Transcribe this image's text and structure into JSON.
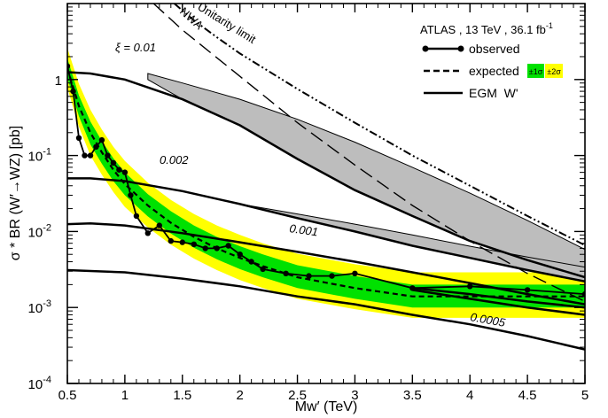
{
  "chart_data": {
    "type": "line",
    "xlabel": "Mw′ (TeV)",
    "ylabel": "σ * BR (W′→WZ) [pb]",
    "xlim": [
      0.5,
      5
    ],
    "ylim": [
      0.0001,
      10
    ],
    "yscale": "log",
    "grid": false,
    "x_ticks": [
      "0.5",
      "1",
      "1.5",
      "2",
      "2.5",
      "3",
      "3.5",
      "4",
      "4.5",
      "5"
    ],
    "y_ticks": [
      {
        "base": "10",
        "exp": "-4"
      },
      {
        "base": "10",
        "exp": "-3"
      },
      {
        "base": "10",
        "exp": "-2"
      },
      {
        "base": "10",
        "exp": "-1"
      },
      {
        "base": "1",
        "exp": ""
      }
    ],
    "legend": {
      "position": "top-right",
      "header": "ATLAS , 13 TeV , 36.1 fb",
      "header_sup": "-1",
      "entries": [
        {
          "label": "observed",
          "style": "solid-with-markers"
        },
        {
          "label": "expected",
          "style": "dashed"
        },
        {
          "label": "EGM  W'",
          "style": "solid"
        }
      ],
      "band1_label": "±1σ",
      "band2_label": "±2σ"
    },
    "observed": {
      "x": [
        0.5,
        0.55,
        0.6,
        0.65,
        0.7,
        0.75,
        0.8,
        0.85,
        0.9,
        0.95,
        1.0,
        1.05,
        1.1,
        1.2,
        1.3,
        1.4,
        1.5,
        1.6,
        1.7,
        1.8,
        1.9,
        2.0,
        2.1,
        2.2,
        2.4,
        2.6,
        2.8,
        3.0,
        3.5,
        4.0,
        4.5,
        5.0
      ],
      "y": [
        1.5,
        0.7,
        0.17,
        0.1,
        0.1,
        0.13,
        0.16,
        0.1,
        0.08,
        0.065,
        0.06,
        0.03,
        0.016,
        0.0095,
        0.012,
        0.0075,
        0.0072,
        0.0068,
        0.006,
        0.006,
        0.0065,
        0.005,
        0.004,
        0.0032,
        0.0028,
        0.0026,
        0.0026,
        0.0028,
        0.0018,
        0.0019,
        0.0017,
        0.0015
      ]
    },
    "expected": {
      "x": [
        0.5,
        0.6,
        0.7,
        0.8,
        0.9,
        1.0,
        1.2,
        1.4,
        1.6,
        1.8,
        2.0,
        2.2,
        2.5,
        3.0,
        3.5,
        4.0,
        4.5,
        5.0
      ],
      "y": [
        1.4,
        0.45,
        0.2,
        0.11,
        0.065,
        0.042,
        0.022,
        0.013,
        0.0085,
        0.006,
        0.0045,
        0.0035,
        0.0025,
        0.0018,
        0.0014,
        0.0014,
        0.0014,
        0.0014
      ]
    },
    "bands": {
      "x": [
        0.5,
        0.6,
        0.7,
        0.8,
        0.9,
        1.0,
        1.2,
        1.4,
        1.6,
        1.8,
        2.0,
        2.2,
        2.5,
        3.0,
        3.5,
        4.0,
        4.5,
        5.0
      ],
      "sigma1_lo": [
        1.05,
        0.33,
        0.14,
        0.078,
        0.046,
        0.03,
        0.0158,
        0.0094,
        0.0061,
        0.0043,
        0.0032,
        0.0025,
        0.0018,
        0.0013,
        0.001,
        0.001,
        0.001,
        0.001
      ],
      "sigma1_hi": [
        1.9,
        0.62,
        0.28,
        0.155,
        0.092,
        0.06,
        0.031,
        0.0185,
        0.012,
        0.0085,
        0.0064,
        0.005,
        0.0036,
        0.0026,
        0.002,
        0.002,
        0.002,
        0.002
      ],
      "sigma2_lo": [
        0.78,
        0.24,
        0.1,
        0.056,
        0.033,
        0.021,
        0.0113,
        0.0067,
        0.0044,
        0.0031,
        0.0023,
        0.0018,
        0.0013,
        0.00095,
        0.00073,
        0.00073,
        0.00073,
        0.00073
      ],
      "sigma2_hi": [
        2.6,
        0.88,
        0.4,
        0.22,
        0.13,
        0.085,
        0.044,
        0.026,
        0.017,
        0.012,
        0.009,
        0.007,
        0.0051,
        0.0037,
        0.0029,
        0.0029,
        0.0029,
        0.0029
      ]
    },
    "theory_curves": [
      {
        "label": "ξ = 0.01",
        "x": [
          0.5,
          0.7,
          1.0,
          1.5,
          2.0,
          2.5,
          3.0,
          3.5,
          4.0,
          4.5,
          5.0
        ],
        "y": [
          1.25,
          1.2,
          1.0,
          0.55,
          0.25,
          0.09,
          0.035,
          0.016,
          0.0075,
          0.0042,
          0.0025
        ]
      },
      {
        "label": "0.002",
        "x": [
          0.5,
          0.7,
          1.0,
          1.5,
          2.0,
          2.5,
          3.0,
          3.5,
          4.0,
          4.5,
          5.0
        ],
        "y": [
          0.05,
          0.05,
          0.046,
          0.034,
          0.023,
          0.015,
          0.01,
          0.0065,
          0.0045,
          0.0031,
          0.0022
        ]
      },
      {
        "label": "0.001",
        "x": [
          0.5,
          0.7,
          1.0,
          1.5,
          2.0,
          2.5,
          3.0,
          3.5,
          4.0,
          4.5,
          5.0
        ],
        "y": [
          0.0125,
          0.0128,
          0.012,
          0.0095,
          0.0072,
          0.0054,
          0.004,
          0.0029,
          0.0021,
          0.0015,
          0.0011
        ]
      },
      {
        "label": "0.0005",
        "x": [
          0.5,
          1.0,
          1.5,
          2.0,
          2.5,
          3.0,
          3.5,
          4.0,
          4.5,
          5.0
        ],
        "y": [
          0.0031,
          0.0029,
          0.0024,
          0.0019,
          0.0014,
          0.0011,
          0.0008,
          0.0006,
          0.00042,
          0.00028
        ]
      },
      {
        "label": "",
        "x": [
          3.5,
          4.0,
          4.5,
          5.0
        ],
        "y": [
          0.0018,
          0.0015,
          0.0012,
          0.001
        ]
      },
      {
        "label": "",
        "x": [
          3.5,
          4.0,
          4.5,
          5.0
        ],
        "y": [
          0.0017,
          0.0013,
          0.001,
          0.0008
        ]
      }
    ],
    "grey_band": {
      "x": [
        1.2,
        1.5,
        2.0,
        2.5,
        3.0,
        3.5,
        4.0,
        4.5,
        5.0
      ],
      "upper": [
        1.2,
        0.9,
        0.55,
        0.3,
        0.15,
        0.07,
        0.032,
        0.014,
        0.0058
      ],
      "lower": [
        1.0,
        0.55,
        0.25,
        0.09,
        0.035,
        0.016,
        0.0075,
        0.0042,
        0.0025
      ]
    },
    "grey_band2": {
      "x": [
        2.0,
        2.5,
        3.0,
        3.5,
        4.0,
        4.5,
        5.0
      ],
      "upper": [
        0.023,
        0.017,
        0.0125,
        0.009,
        0.0064,
        0.0046,
        0.0034
      ],
      "lower": [
        0.023,
        0.015,
        0.01,
        0.0065,
        0.0045,
        0.0031,
        0.0022
      ]
    },
    "unitarity_limit": {
      "label": "Unitarity limit",
      "x": [
        1.43,
        1.6,
        1.8,
        2.0,
        2.5,
        3.0,
        3.5,
        4.0,
        4.5,
        5.0
      ],
      "y": [
        10,
        6.0,
        3.6,
        2.2,
        0.75,
        0.27,
        0.1,
        0.04,
        0.016,
        0.0066
      ]
    },
    "nwa": {
      "label": "NWA",
      "x": [
        1.25,
        1.5,
        2.0,
        2.5,
        3.0,
        3.5,
        4.0,
        4.5,
        5.0
      ],
      "y": [
        10,
        4.5,
        1.1,
        0.27,
        0.075,
        0.022,
        0.0075,
        0.0028,
        0.0012
      ]
    }
  }
}
